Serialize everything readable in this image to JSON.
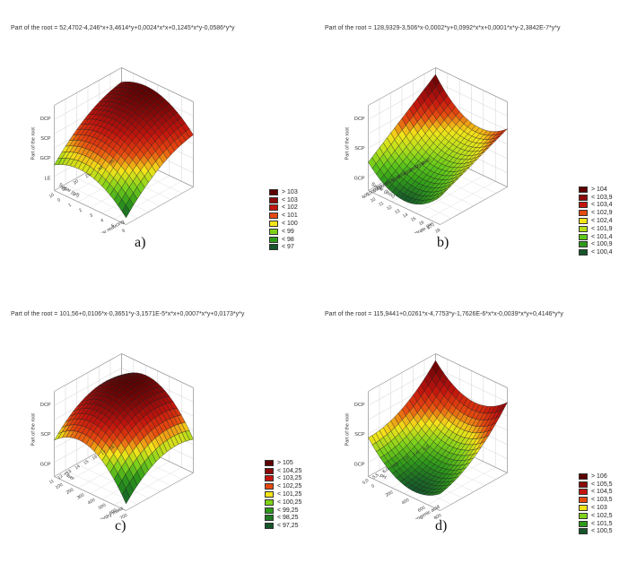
{
  "colors": {
    "wire": "#1b1b1b",
    "box": "#9a9a9a"
  },
  "chart_data": [
    {
      "type": "surface",
      "panel_label": "a)",
      "title": "Part of the root = 52,4702-4,246*x+3,4614*y+0,0024*x*x+0,1245*x*y-0,0586*y*y",
      "zlabel": "Part of the root",
      "ylabel": "Sugar (g/l)",
      "xlabel": "Sugar reducing",
      "z_ticks": [
        "DCP",
        "SCP",
        "GCP",
        "LE"
      ],
      "y_ticks": [
        "10",
        "15",
        "20",
        "25",
        "30",
        "35"
      ],
      "x_ticks": [
        "0",
        "1",
        "2",
        "3",
        "4",
        "5",
        "6"
      ],
      "surface": {
        "front": "high",
        "back": "low",
        "shape": "ridge"
      },
      "legend": [
        {
          "label": "> 103",
          "color": "#5e0000"
        },
        {
          "label": "< 103",
          "color": "#8b0a0a"
        },
        {
          "label": "< 102",
          "color": "#c4150d"
        },
        {
          "label": "< 101",
          "color": "#e64a10"
        },
        {
          "label": "< 100",
          "color": "#f4e41a"
        },
        {
          "label": "< 99",
          "color": "#7fd21b"
        },
        {
          "label": "< 98",
          "color": "#2e9a1a"
        },
        {
          "label": "< 97",
          "color": "#15562a"
        }
      ]
    },
    {
      "type": "surface",
      "panel_label": "b)",
      "title": "Part of the root = 128,9329-3,506*x-0,0002*y+0,0992*x*x+0,0001*x*y-2,3842E-7*y*y",
      "zlabel": "Part of the root",
      "ylabel": "Sugar (Brix)",
      "xlabel": "Nitrate (Pt)",
      "z_ticks": [
        "DCP",
        "SCP",
        "GCP"
      ],
      "y_ticks": [
        "600",
        "1000",
        "1500",
        "2000",
        "2500",
        "3000",
        "3500",
        "4000",
        "4500",
        "5000",
        "5500"
      ],
      "x_ticks": [
        "10",
        "11",
        "12",
        "13",
        "14",
        "15",
        "16",
        "17",
        "18"
      ],
      "surface": {
        "front": "low",
        "back": "high",
        "shape": "valley"
      },
      "legend": [
        {
          "label": "> 104",
          "color": "#5e0000"
        },
        {
          "label": "< 103,9",
          "color": "#8b0a0a"
        },
        {
          "label": "< 103,4",
          "color": "#c4150d"
        },
        {
          "label": "< 102,9",
          "color": "#e64a10"
        },
        {
          "label": "< 102,4",
          "color": "#f4e41a"
        },
        {
          "label": "< 101,9",
          "color": "#b6e01c"
        },
        {
          "label": "< 101,4",
          "color": "#5fc81b"
        },
        {
          "label": "< 100,9",
          "color": "#2e9a1a"
        },
        {
          "label": "< 100,4",
          "color": "#15562a"
        }
      ]
    },
    {
      "type": "surface",
      "panel_label": "c)",
      "title": "Part of the root = 101,56+0,0106*x-0,3651*y-3,1571E-5*x*x+0,0007*x*y+0,0173*y*y",
      "zlabel": "Part of the root",
      "ylabel": "Fiber",
      "xlabel": "Pulp/dry mass",
      "z_ticks": [
        "DCP",
        "SCP",
        "GCP"
      ],
      "y_ticks": [
        "11",
        "12",
        "13",
        "14",
        "15",
        "16",
        "17",
        "18"
      ],
      "x_ticks": [
        "100",
        "200",
        "300",
        "400",
        "500",
        "600",
        "700"
      ],
      "surface": {
        "front": "low",
        "back": "high",
        "shape": "dome"
      },
      "legend": [
        {
          "label": "> 105",
          "color": "#5e0000"
        },
        {
          "label": "< 104,25",
          "color": "#8b0a0a"
        },
        {
          "label": "< 103,25",
          "color": "#c4150d"
        },
        {
          "label": "< 102,25",
          "color": "#e64a10"
        },
        {
          "label": "< 101,25",
          "color": "#f4e41a"
        },
        {
          "label": "< 100,25",
          "color": "#7fd21b"
        },
        {
          "label": "< 99,25",
          "color": "#2e9a1a"
        },
        {
          "label": "< 98,25",
          "color": "#1f7a22"
        },
        {
          "label": "< 97,25",
          "color": "#15562a"
        }
      ]
    },
    {
      "type": "surface",
      "panel_label": "d)",
      "title": "Part of the root = 115,9441+0,0261*x-4,7753*y-1,7626E-6*x*x-0,0039*x*y+0,4146*y*y",
      "zlabel": "Part of the root",
      "ylabel": "pH",
      "xlabel": "Chlorogenic acid",
      "z_ticks": [
        "DCP",
        "SCP",
        "GCP"
      ],
      "y_ticks": [
        "5,0",
        "5,5",
        "6,0",
        "6,5",
        "7,0",
        "7,5",
        "8,0"
      ],
      "x_ticks": [
        "0",
        "200",
        "400",
        "600",
        "800"
      ],
      "surface": {
        "front": "low",
        "back": "high",
        "shape": "saddle"
      },
      "legend": [
        {
          "label": "> 106",
          "color": "#5e0000"
        },
        {
          "label": "< 105,5",
          "color": "#8b0a0a"
        },
        {
          "label": "< 104,5",
          "color": "#c4150d"
        },
        {
          "label": "< 103,5",
          "color": "#e64a10"
        },
        {
          "label": "< 103",
          "color": "#f4e41a"
        },
        {
          "label": "< 102,5",
          "color": "#7fd21b"
        },
        {
          "label": "< 101,5",
          "color": "#2e9a1a"
        },
        {
          "label": "< 100,5",
          "color": "#15562a"
        }
      ]
    }
  ]
}
